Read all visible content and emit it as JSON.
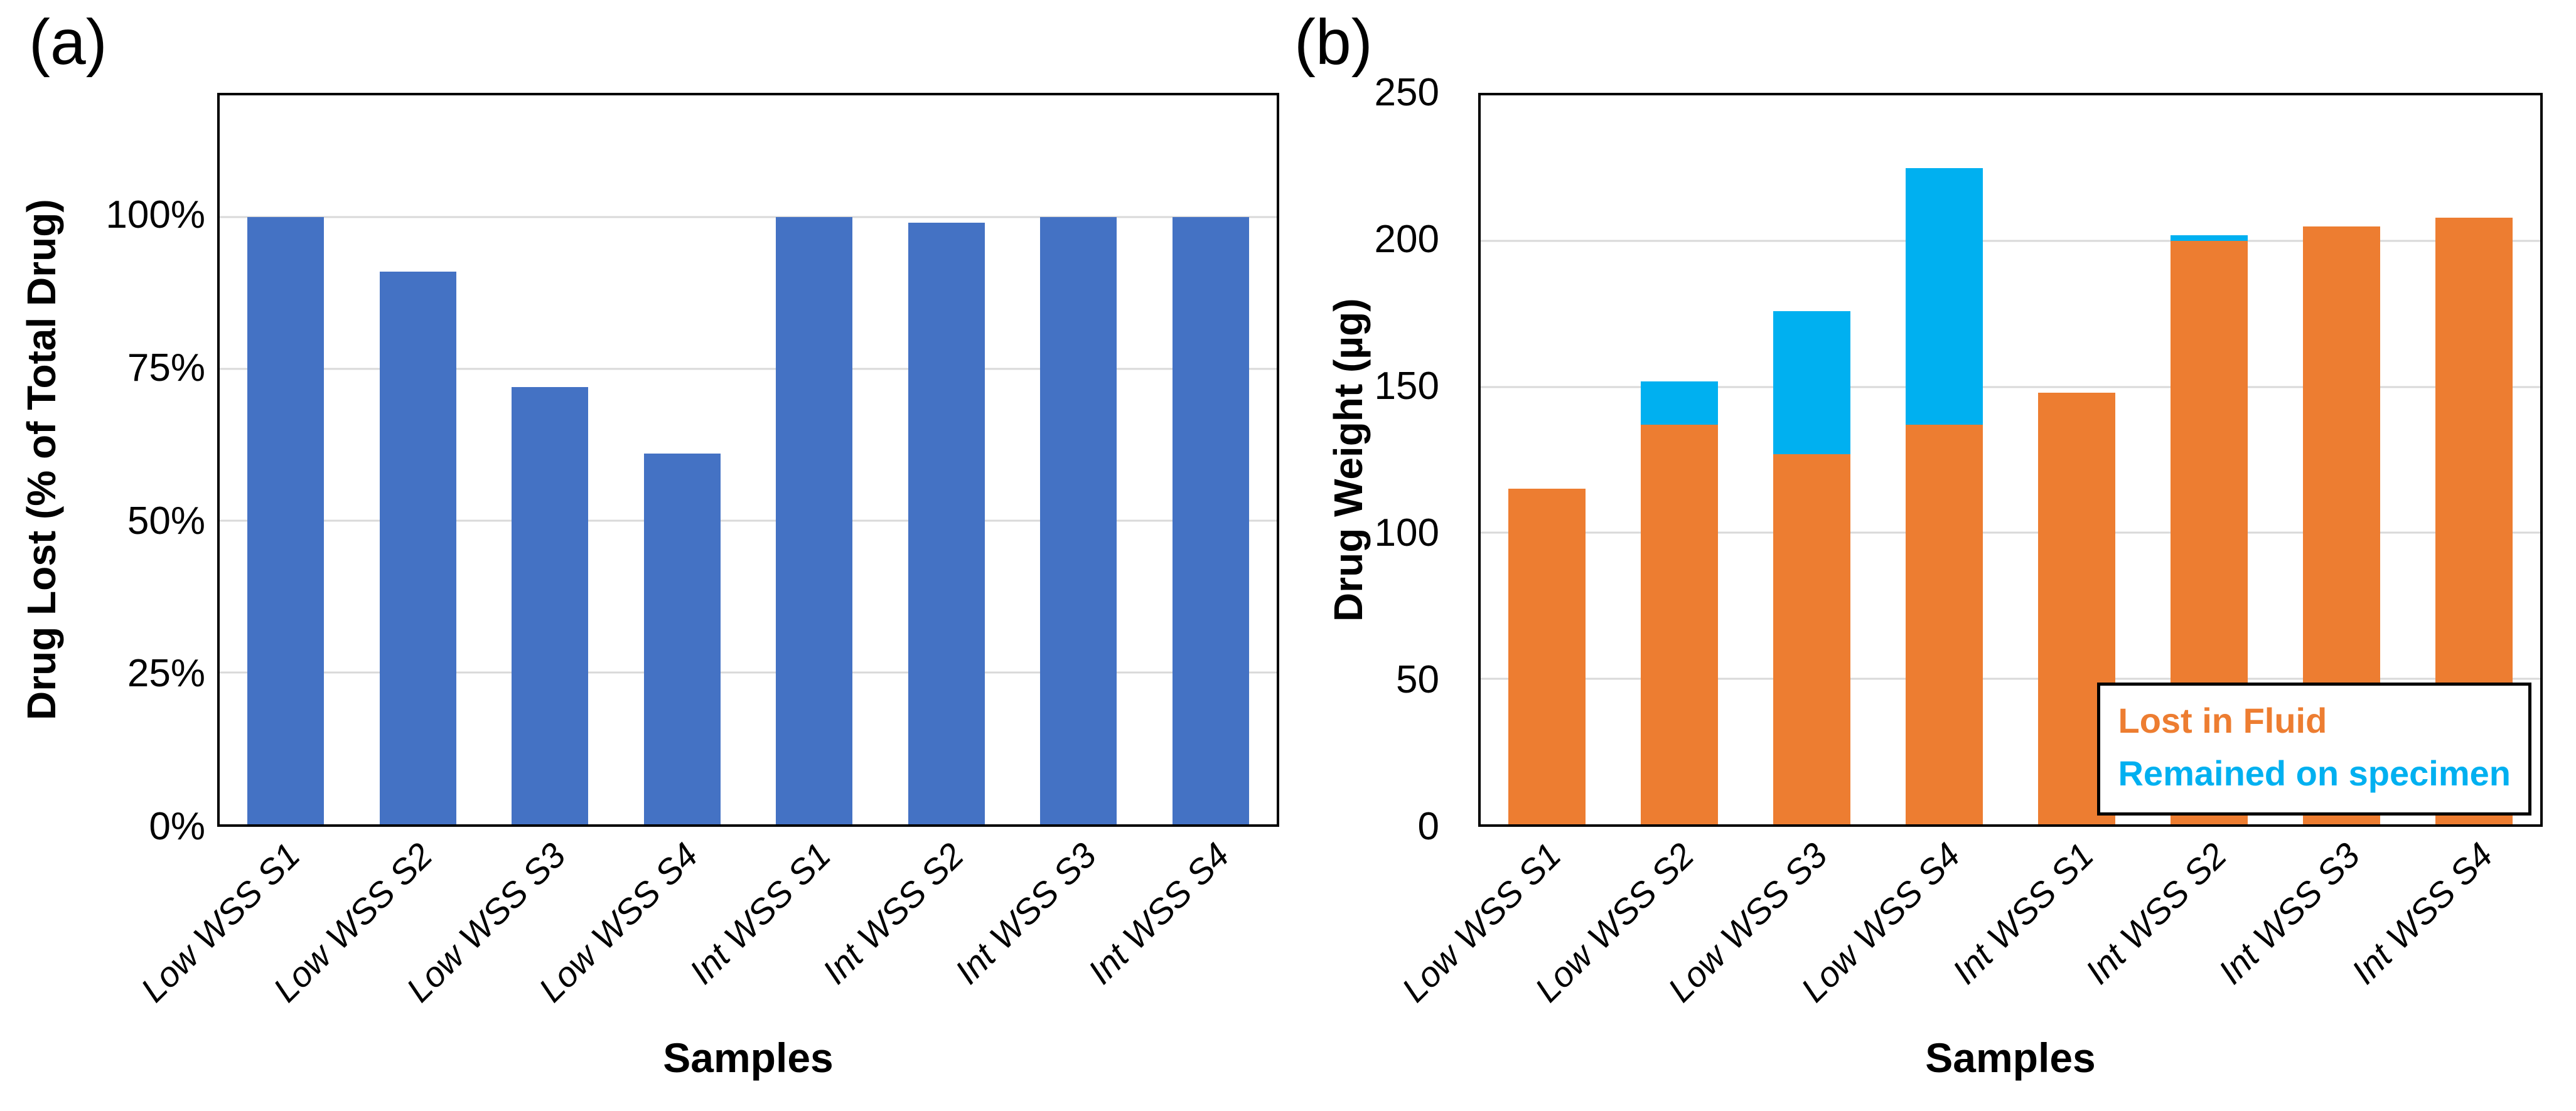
{
  "colors": {
    "background": "#FFFFFF",
    "axis": "#000000",
    "gridline": "#D9D9D9",
    "bar_blue": "#4472C4",
    "bar_orange": "#ED7D31",
    "bar_cyan": "#00B0F0"
  },
  "chart_data": [
    {
      "id": "a",
      "panel_label": "(a)",
      "type": "bar",
      "xlabel": "Samples",
      "ylabel": "Drug Lost (% of Total Drug)",
      "categories": [
        "Low WSS S1",
        "Low WSS S2",
        "Low WSS S3",
        "Low WSS S4",
        "Int WSS S1",
        "Int WSS S2",
        "Int WSS S3",
        "Int WSS S4"
      ],
      "values": [
        100,
        91,
        72,
        61,
        100,
        99,
        100,
        100
      ],
      "unit": "%",
      "bar_color": "#4472C4",
      "ylim": [
        0,
        120
      ],
      "yticks": [
        {
          "value": 0,
          "label": "0%"
        },
        {
          "value": 25,
          "label": "25%"
        },
        {
          "value": 50,
          "label": "50%"
        },
        {
          "value": 75,
          "label": "75%"
        },
        {
          "value": 100,
          "label": "100%"
        }
      ],
      "gridlines_at": [
        25,
        50,
        75,
        100
      ],
      "grid": true,
      "legend": null
    },
    {
      "id": "b",
      "panel_label": "(b)",
      "type": "stacked-bar",
      "xlabel": "Samples",
      "ylabel": "Drug Weight (µg)",
      "categories": [
        "Low WSS S1",
        "Low WSS S2",
        "Low WSS S3",
        "Low WSS S4",
        "Int WSS S1",
        "Int WSS S2",
        "Int WSS S3",
        "Int WSS S4"
      ],
      "series": [
        {
          "name": "Lost in Fluid",
          "color": "#ED7D31",
          "pattern": null,
          "values": [
            115,
            137,
            127,
            137,
            148,
            200,
            205,
            208
          ]
        },
        {
          "name": "Remained on specimen",
          "color": "#00B0F0",
          "pattern": "white-dots",
          "values": [
            0,
            15,
            49,
            88,
            0,
            2,
            0,
            0
          ]
        }
      ],
      "totals": [
        115,
        152,
        176,
        225,
        148,
        202,
        205,
        208
      ],
      "unit": "µg",
      "ylim": [
        0,
        250
      ],
      "yticks": [
        {
          "value": 0,
          "label": "0"
        },
        {
          "value": 50,
          "label": "50"
        },
        {
          "value": 100,
          "label": "100"
        },
        {
          "value": 150,
          "label": "150"
        },
        {
          "value": 200,
          "label": "200"
        },
        {
          "value": 250,
          "label": "250"
        }
      ],
      "gridlines_at": [
        50,
        100,
        150,
        200
      ],
      "grid": true,
      "legend_position": "bottom-right"
    }
  ]
}
